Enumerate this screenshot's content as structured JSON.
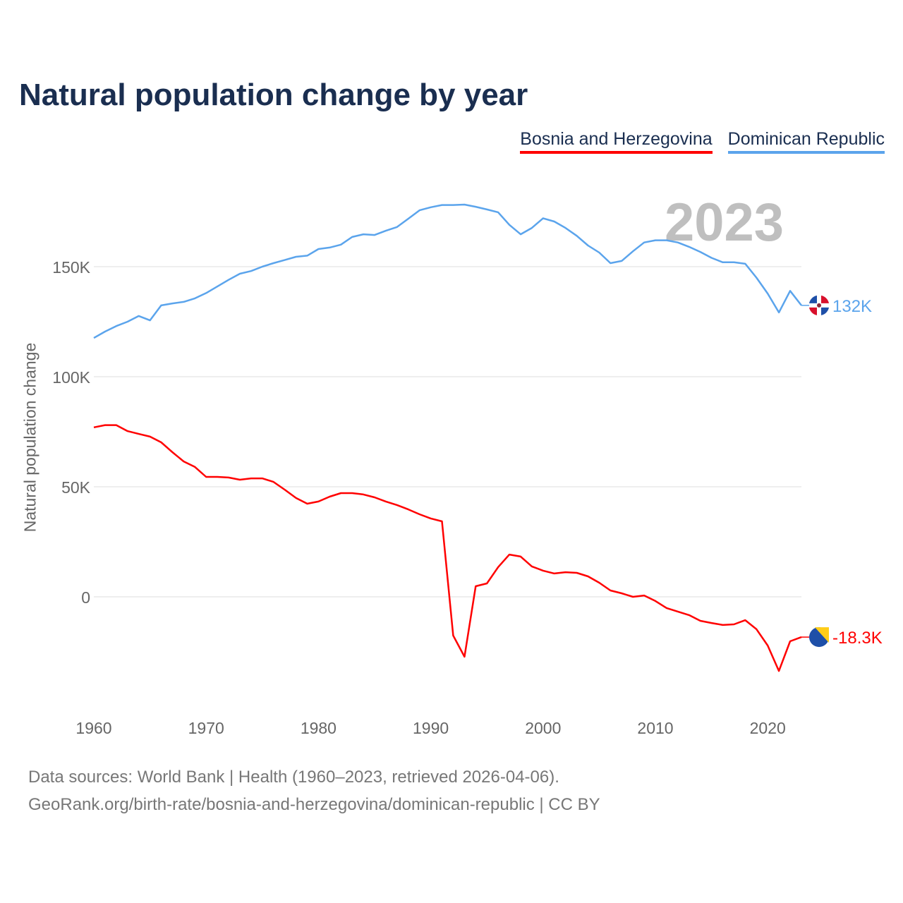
{
  "chart_data": {
    "type": "line",
    "title": "Natural population change by year",
    "ylabel": "Natural population change",
    "xlabel": "",
    "highlight_year": "2023",
    "xlim": [
      1960,
      2023
    ],
    "ylim": [
      -40000,
      190000
    ],
    "x_ticks": [
      "1960",
      "1970",
      "1980",
      "1990",
      "2000",
      "2010",
      "2020"
    ],
    "y_ticks": [
      {
        "v": 0,
        "label": "0"
      },
      {
        "v": 50000,
        "label": "50K"
      },
      {
        "v": 100000,
        "label": "100K"
      },
      {
        "v": 150000,
        "label": "150K"
      }
    ],
    "grid": true,
    "legend_position": "top-right",
    "years_start": 1960,
    "series": [
      {
        "name": "Bosnia and Herzegovina",
        "color": "#ff0000",
        "end_label": "-18.3K",
        "flag": "bosnia-flag",
        "values": [
          77000,
          78000,
          78000,
          75300,
          74000,
          72800,
          70200,
          65700,
          61500,
          59000,
          54500,
          54500,
          54200,
          53200,
          53800,
          53800,
          52200,
          48700,
          44900,
          42300,
          43300,
          45500,
          47100,
          47100,
          46500,
          45200,
          43300,
          41700,
          39700,
          37500,
          35600,
          34300,
          -17600,
          -27200,
          4800,
          6100,
          13500,
          19200,
          18300,
          13800,
          11900,
          10600,
          11200,
          10900,
          9300,
          6400,
          2900,
          1600,
          0,
          600,
          -1900,
          -5100,
          -6700,
          -8300,
          -10900,
          -11900,
          -12800,
          -12500,
          -10600,
          -14700,
          -22100,
          -33700,
          -20200,
          -18300
        ]
      },
      {
        "name": "Dominican Republic",
        "color": "#5ba4ec",
        "end_label": "132K",
        "flag": "dominican-flag",
        "values": [
          117600,
          120500,
          123000,
          125000,
          127600,
          125600,
          132400,
          133300,
          134000,
          135600,
          138000,
          141000,
          144000,
          146800,
          148000,
          150000,
          151600,
          153000,
          154500,
          155000,
          158000,
          158700,
          160000,
          163500,
          164700,
          164400,
          166300,
          168000,
          171800,
          175600,
          177000,
          178000,
          178000,
          178200,
          177200,
          176000,
          174700,
          169000,
          164700,
          167600,
          172000,
          170500,
          167600,
          164000,
          159600,
          156400,
          151600,
          152600,
          157000,
          161000,
          162000,
          162000,
          161000,
          159000,
          156700,
          154000,
          152000,
          152000,
          151300,
          145000,
          137800,
          129200,
          139000,
          132400
        ]
      }
    ]
  },
  "sources": {
    "line1": "Data sources: World Bank | Health (1960–2023, retrieved 2026-04-06).",
    "line2": "GeoRank.org/birth-rate/bosnia-and-herzegovina/dominican-republic | CC BY"
  }
}
